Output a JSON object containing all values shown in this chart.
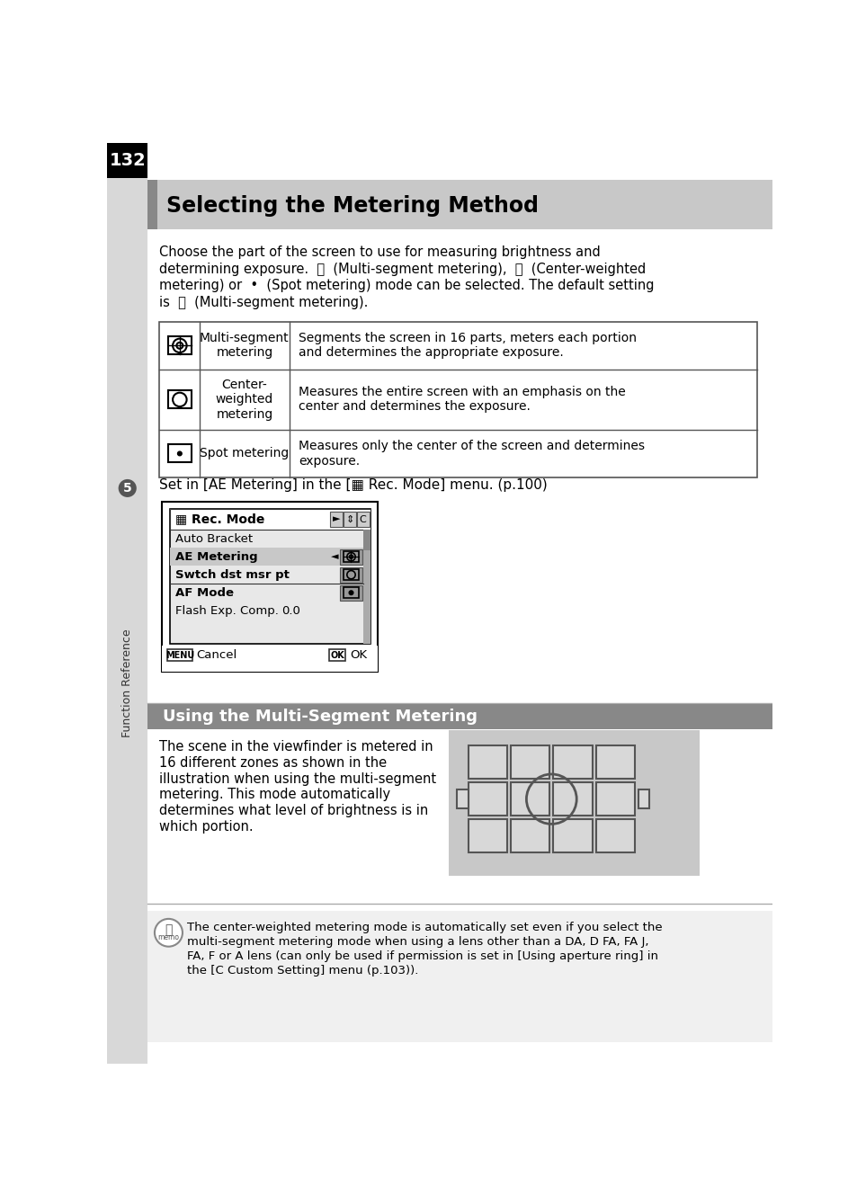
{
  "page_number": "132",
  "title": "Selecting the Metering Method",
  "table_rows": [
    {
      "icon_type": "multi",
      "label": "Multi-segment\nmetering",
      "description": "Segments the screen in 16 parts, meters each portion\nand determines the appropriate exposure."
    },
    {
      "icon_type": "center",
      "label": "Center-\nweighted\nmetering",
      "description": "Measures the entire screen with an emphasis on the\ncenter and determines the exposure."
    },
    {
      "icon_type": "spot",
      "label": "Spot metering",
      "description": "Measures only the center of the screen and determines\nexposure."
    }
  ],
  "step_text": "Set in [AE Metering] in the [▦ Rec. Mode] menu. (p.100)",
  "menu_items": [
    {
      "name": "Auto Bracket",
      "value": "",
      "highlighted": false,
      "bold": false
    },
    {
      "name": "AE Metering",
      "value": "multi",
      "highlighted": true,
      "bold": true
    },
    {
      "name": "Swtch dst msr pt",
      "value": "center",
      "highlighted": false,
      "bold": true
    },
    {
      "name": "AF Mode",
      "value": "spot",
      "highlighted": false,
      "bold": true
    },
    {
      "name": "Flash Exp. Comp.",
      "value": "0.0",
      "highlighted": false,
      "bold": false
    }
  ],
  "section_title": "Using the Multi-Segment Metering",
  "viewfinder_text": "The scene in the viewfinder is metered in\n16 different zones as shown in the\nillustration when using the multi-segment\nmetering. This mode automatically\ndetermines what level of brightness is in\nwhich portion.",
  "memo_text": "The center-weighted metering mode is automatically set even if you select the\nmulti-segment metering mode when using a lens other than a DA, D FA, FA J,\nFA, F or A lens (can only be used if permission is set in [Using aperture ring] in\nthe [C Custom Setting] menu (p.103)).",
  "bg_color": "#ffffff",
  "sidebar_bg": "#d8d8d8",
  "page_num_bg": "#000000",
  "page_num_color": "#ffffff",
  "header_bg": "#c0c0c0",
  "header_accent": "#a0a0a0",
  "section_bg": "#888888",
  "memo_bg": "#f5f5f5",
  "menu_bg": "#e8e8e8",
  "menu_hl_bg": "#b0b0b0",
  "menu_icon_panel_bg": "#a0a0a0"
}
